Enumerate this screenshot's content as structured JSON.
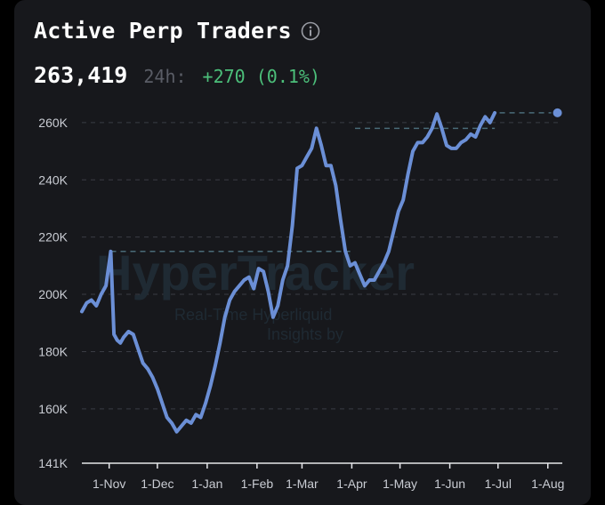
{
  "header": {
    "title": "Active Perp Traders",
    "value": "263,419",
    "change_label": "24h:",
    "change_value": "+270 (0.1%)"
  },
  "watermark": {
    "brand": "HyperTracker",
    "line1": "Real-Time Hyperliquid",
    "line2": "Insights by"
  },
  "colors": {
    "line": "#6b8fd6",
    "positive": "#4cbf7a",
    "reference_line": "#4a6b78",
    "grid": "#3a3c44"
  },
  "chart_data": {
    "type": "line",
    "title": "Active Perp Traders",
    "xlabel": "",
    "ylabel": "",
    "x_ticks": [
      "1-Nov",
      "1-Dec",
      "1-Jan",
      "1-Feb",
      "1-Mar",
      "1-Apr",
      "1-May",
      "1-Jun",
      "1-Jul",
      "1-Aug"
    ],
    "y_ticks": [
      "141K",
      "160K",
      "180K",
      "200K",
      "220K",
      "240K",
      "260K"
    ],
    "y_tick_values": [
      141000,
      160000,
      180000,
      200000,
      220000,
      240000,
      260000
    ],
    "ylim": [
      141000,
      264000
    ],
    "xlim": [
      "2024-10-15",
      "2025-08-10"
    ],
    "grid": true,
    "series": [
      {
        "x": [
          "2024-10-15",
          "2024-10-18",
          "2024-10-21",
          "2024-10-24",
          "2024-10-27",
          "2024-10-30",
          "2024-11-02",
          "2024-11-04",
          "2024-11-06",
          "2024-11-08",
          "2024-11-10",
          "2024-11-13",
          "2024-11-16",
          "2024-11-19",
          "2024-11-22",
          "2024-11-25",
          "2024-11-28",
          "2024-12-01",
          "2024-12-04",
          "2024-12-07",
          "2024-12-10",
          "2024-12-13",
          "2024-12-16",
          "2024-12-19",
          "2024-12-22",
          "2024-12-25",
          "2024-12-28",
          "2024-12-31",
          "2025-01-03",
          "2025-01-06",
          "2025-01-09",
          "2025-01-12",
          "2025-01-15",
          "2025-01-18",
          "2025-01-21",
          "2025-01-24",
          "2025-01-27",
          "2025-01-30",
          "2025-02-02",
          "2025-02-05",
          "2025-02-08",
          "2025-02-11",
          "2025-02-14",
          "2025-02-17",
          "2025-02-20",
          "2025-02-23",
          "2025-02-26",
          "2025-03-01",
          "2025-03-04",
          "2025-03-07",
          "2025-03-10",
          "2025-03-13",
          "2025-03-16",
          "2025-03-19",
          "2025-03-22",
          "2025-03-25",
          "2025-03-28",
          "2025-03-31",
          "2025-04-03",
          "2025-04-06",
          "2025-04-09",
          "2025-04-12",
          "2025-04-15",
          "2025-04-18",
          "2025-04-21",
          "2025-04-24",
          "2025-04-27",
          "2025-04-30",
          "2025-05-03",
          "2025-05-06",
          "2025-05-09",
          "2025-05-12",
          "2025-05-15",
          "2025-05-18",
          "2025-05-21",
          "2025-05-24",
          "2025-05-27",
          "2025-05-30",
          "2025-06-02",
          "2025-06-05",
          "2025-06-08",
          "2025-06-11",
          "2025-06-14",
          "2025-06-17",
          "2025-06-20",
          "2025-06-23",
          "2025-06-26",
          "2025-06-29",
          "2025-07-02",
          "2025-07-05",
          "2025-07-08",
          "2025-07-11",
          "2025-07-14",
          "2025-07-17",
          "2025-07-20",
          "2025-07-23",
          "2025-07-26",
          "2025-07-29",
          "2025-08-01",
          "2025-08-04",
          "2025-08-07"
        ],
        "y": [
          194000,
          197000,
          198000,
          196000,
          200000,
          203000,
          215000,
          186000,
          184000,
          183000,
          185000,
          187000,
          186000,
          181000,
          176000,
          174000,
          171000,
          167000,
          162000,
          157000,
          155000,
          152000,
          154000,
          156000,
          155000,
          158000,
          157000,
          162000,
          168000,
          175000,
          183000,
          192000,
          198000,
          201000,
          203000,
          205000,
          206000,
          202000,
          209000,
          208000,
          201000,
          192000,
          196000,
          205000,
          210000,
          224000,
          244000,
          245000,
          248000,
          251000,
          258000,
          252000,
          245000,
          245000,
          238000,
          226000,
          215000,
          210000,
          211000,
          207000,
          203000,
          205000,
          205000,
          208000,
          211000,
          215000,
          222000,
          229000,
          233000,
          242000,
          250000,
          253000,
          253000,
          255000,
          258000,
          263000,
          258000,
          252000,
          251000,
          251000,
          253000,
          254000,
          256000,
          255000,
          259000,
          262000,
          260000,
          263419,
          263419,
          263419,
          263419,
          263419,
          263419,
          263419,
          263419,
          263419,
          263419,
          263419,
          263419,
          263419,
          263419
        ]
      }
    ],
    "reference_lines": [
      {
        "y": 215000,
        "from": "2024-11-02",
        "to": "2025-03-31"
      },
      {
        "y": 258000,
        "from": "2025-04-03",
        "to": "2025-06-29"
      },
      {
        "y": 263419,
        "from": "2025-07-02",
        "to": "2025-08-07"
      }
    ]
  }
}
